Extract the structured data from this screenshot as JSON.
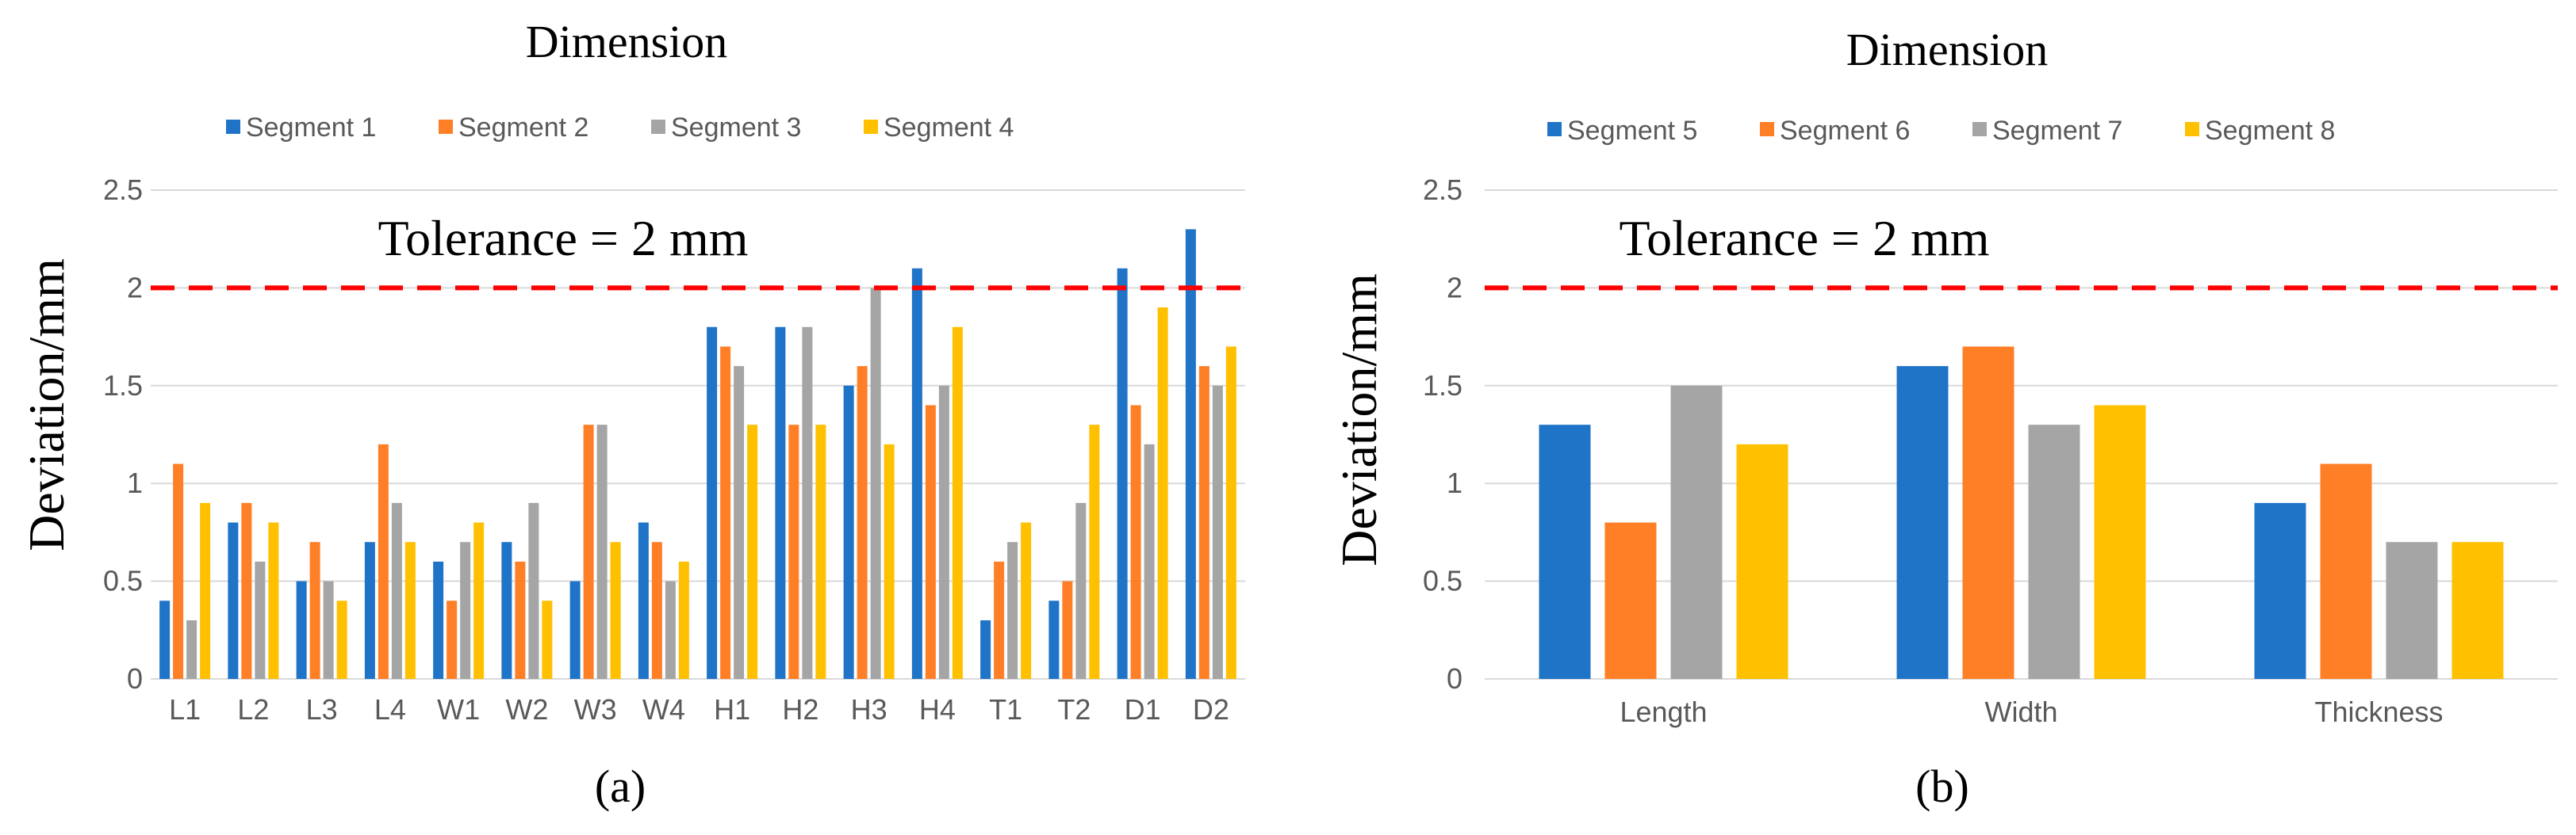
{
  "chart_data": [
    {
      "type": "bar",
      "title": "Dimension",
      "caption": "(a)",
      "ylabel": "Deviation/mm",
      "xlabel": "",
      "ylim": [
        0,
        2.5
      ],
      "yticks": [
        "0",
        "0.5",
        "1",
        "1.5",
        "2",
        "2.5"
      ],
      "grid": true,
      "legend_position": "top",
      "tolerance": {
        "value": 2,
        "label": "Tolerance = 2 mm",
        "color": "#ff0000"
      },
      "categories": [
        "L1",
        "L2",
        "L3",
        "L4",
        "W1",
        "W2",
        "W3",
        "W4",
        "H1",
        "H2",
        "H3",
        "H4",
        "T1",
        "T2",
        "D1",
        "D2"
      ],
      "series": [
        {
          "name": "Segment 1",
          "color": "#1f74c8",
          "values": [
            0.4,
            0.8,
            0.5,
            0.7,
            0.6,
            0.7,
            0.5,
            0.8,
            1.8,
            1.8,
            1.5,
            2.1,
            0.3,
            0.4,
            2.1,
            2.3
          ]
        },
        {
          "name": "Segment 2",
          "color": "#ff7f27",
          "values": [
            1.1,
            0.9,
            0.7,
            1.2,
            0.4,
            0.6,
            1.3,
            0.7,
            1.7,
            1.3,
            1.6,
            1.4,
            0.6,
            0.5,
            1.4,
            1.6
          ]
        },
        {
          "name": "Segment 3",
          "color": "#a5a5a5",
          "values": [
            0.3,
            0.6,
            0.5,
            0.9,
            0.7,
            0.9,
            1.3,
            0.5,
            1.6,
            1.8,
            2.0,
            1.5,
            0.7,
            0.9,
            1.2,
            1.5
          ]
        },
        {
          "name": "Segment 4",
          "color": "#ffc000",
          "values": [
            0.9,
            0.8,
            0.4,
            0.7,
            0.8,
            0.4,
            0.7,
            0.6,
            1.3,
            1.3,
            1.2,
            1.8,
            0.8,
            1.3,
            1.9,
            1.7
          ]
        }
      ]
    },
    {
      "type": "bar",
      "title": "Dimension",
      "caption": "(b)",
      "ylabel": "Deviation/mm",
      "xlabel": "",
      "ylim": [
        0,
        2.5
      ],
      "yticks": [
        "0",
        "0.5",
        "1",
        "1.5",
        "2",
        "2.5"
      ],
      "grid": true,
      "legend_position": "top",
      "tolerance": {
        "value": 2,
        "label": "Tolerance = 2 mm",
        "color": "#ff0000"
      },
      "categories": [
        "Length",
        "Width",
        "Thickness"
      ],
      "series": [
        {
          "name": "Segment 5",
          "color": "#1f74c8",
          "values": [
            1.3,
            1.6,
            0.9
          ]
        },
        {
          "name": "Segment 6",
          "color": "#ff7f27",
          "values": [
            0.8,
            1.7,
            1.1
          ]
        },
        {
          "name": "Segment 7",
          "color": "#a5a5a5",
          "values": [
            1.5,
            1.3,
            0.7
          ]
        },
        {
          "name": "Segment 8",
          "color": "#ffc000",
          "values": [
            1.2,
            1.4,
            0.7
          ]
        }
      ]
    }
  ]
}
